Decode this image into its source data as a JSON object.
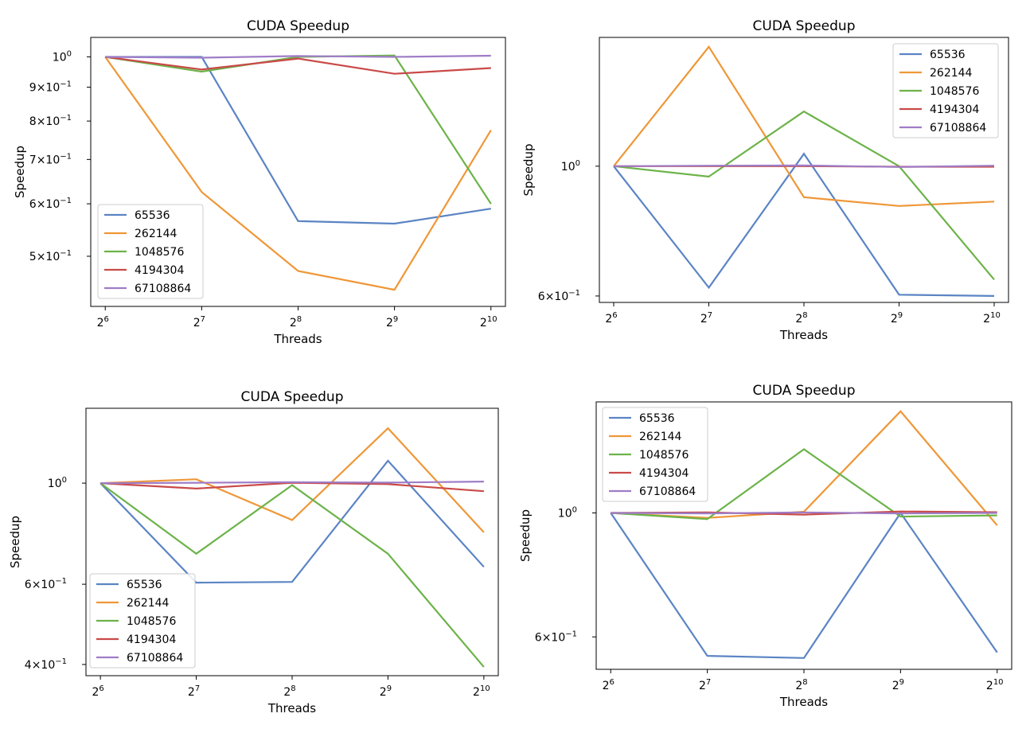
{
  "colors": {
    "s1": "#5b84c4",
    "s2": "#ef9737",
    "s3": "#6cb349",
    "s4": "#c94a48",
    "s5": "#9f7dc7"
  },
  "chart_data": [
    {
      "type": "line",
      "title": "CUDA Speedup",
      "xlabel": "Threads",
      "ylabel": "Speedup",
      "x": [
        64,
        128,
        256,
        512,
        1024
      ],
      "xscale": "log2",
      "yscale": "log",
      "ylim": [
        0.42,
        1.07
      ],
      "legend_position": "lower-left",
      "ytick_values": [
        1.0,
        0.9,
        0.8,
        0.7,
        0.6,
        0.5
      ],
      "ytick_labels": [
        [
          "10",
          "0"
        ],
        [
          "9×10",
          "−1"
        ],
        [
          "8×10",
          "−1"
        ],
        [
          "7×10",
          "−1"
        ],
        [
          "6×10",
          "−1"
        ],
        [
          "5×10",
          "−1"
        ]
      ],
      "series": [
        {
          "name": "65536",
          "values": [
            1.0,
            1.0,
            0.565,
            0.56,
            0.59
          ]
        },
        {
          "name": "262144",
          "values": [
            1.0,
            0.625,
            0.475,
            0.445,
            0.775
          ]
        },
        {
          "name": "1048576",
          "values": [
            1.0,
            0.95,
            1.0,
            1.005,
            0.6
          ]
        },
        {
          "name": "4194304",
          "values": [
            1.0,
            0.957,
            0.994,
            0.943,
            0.962
          ]
        },
        {
          "name": "67108864",
          "values": [
            1.0,
            0.997,
            1.003,
            1.0,
            1.004
          ]
        }
      ]
    },
    {
      "type": "line",
      "title": "CUDA Speedup",
      "xlabel": "Threads",
      "ylabel": "Speedup",
      "x": [
        64,
        128,
        256,
        512,
        1024
      ],
      "xscale": "log2",
      "yscale": "log",
      "ylim": [
        0.585,
        1.66
      ],
      "legend_position": "upper-right",
      "ytick_values": [
        1.0,
        0.6
      ],
      "ytick_labels": [
        [
          "10",
          "0"
        ],
        [
          "6×10",
          "−1"
        ]
      ],
      "series": [
        {
          "name": "65536",
          "values": [
            1.0,
            0.62,
            1.05,
            0.603,
            0.6
          ]
        },
        {
          "name": "262144",
          "values": [
            1.0,
            1.6,
            0.885,
            0.855,
            0.87
          ]
        },
        {
          "name": "1048576",
          "values": [
            1.0,
            0.96,
            1.24,
            1.0,
            0.64
          ]
        },
        {
          "name": "4194304",
          "values": [
            1.0,
            1.0,
            1.0,
            0.998,
            0.998
          ]
        },
        {
          "name": "67108864",
          "values": [
            1.0,
            1.002,
            1.003,
            0.997,
            1.002
          ]
        }
      ]
    },
    {
      "type": "line",
      "title": "CUDA Speedup",
      "xlabel": "Threads",
      "ylabel": "Speedup",
      "x": [
        64,
        128,
        256,
        512,
        1024
      ],
      "xscale": "log2",
      "yscale": "log",
      "ylim": [
        0.378,
        1.46
      ],
      "legend_position": "lower-left",
      "ytick_values": [
        1.0,
        0.6,
        0.4
      ],
      "ytick_labels": [
        [
          "10",
          "0"
        ],
        [
          "6×10",
          "−1"
        ],
        [
          "4×10",
          "−1"
        ]
      ],
      "series": [
        {
          "name": "65536",
          "values": [
            1.0,
            0.605,
            0.607,
            1.12,
            0.655
          ]
        },
        {
          "name": "262144",
          "values": [
            1.0,
            1.02,
            0.83,
            1.32,
            0.78
          ]
        },
        {
          "name": "1048576",
          "values": [
            1.0,
            0.7,
            0.99,
            0.7,
            0.395
          ]
        },
        {
          "name": "4194304",
          "values": [
            1.0,
            0.973,
            1.002,
            0.995,
            0.96
          ]
        },
        {
          "name": "67108864",
          "values": [
            1.0,
            1.002,
            1.005,
            1.003,
            1.008
          ]
        }
      ]
    },
    {
      "type": "line",
      "title": "CUDA Speedup",
      "xlabel": "Threads",
      "ylabel": "Speedup",
      "x": [
        64,
        128,
        256,
        512,
        1024
      ],
      "xscale": "log2",
      "yscale": "log",
      "ylim": [
        0.525,
        1.58
      ],
      "legend_position": "upper-left",
      "ytick_values": [
        1.0,
        0.6
      ],
      "ytick_labels": [
        [
          "10",
          "0"
        ],
        [
          "6×10",
          "−1"
        ]
      ],
      "series": [
        {
          "name": "65536",
          "values": [
            1.0,
            0.555,
            0.55,
            1.0,
            0.563
          ]
        },
        {
          "name": "262144",
          "values": [
            1.0,
            0.98,
            1.005,
            1.52,
            0.95
          ]
        },
        {
          "name": "1048576",
          "values": [
            1.0,
            0.975,
            1.3,
            0.985,
            0.99
          ]
        },
        {
          "name": "4194304",
          "values": [
            1.0,
            1.002,
            0.993,
            1.006,
            1.003
          ]
        },
        {
          "name": "67108864",
          "values": [
            1.0,
            0.998,
            1.002,
            0.998,
            1.0
          ]
        }
      ]
    }
  ]
}
